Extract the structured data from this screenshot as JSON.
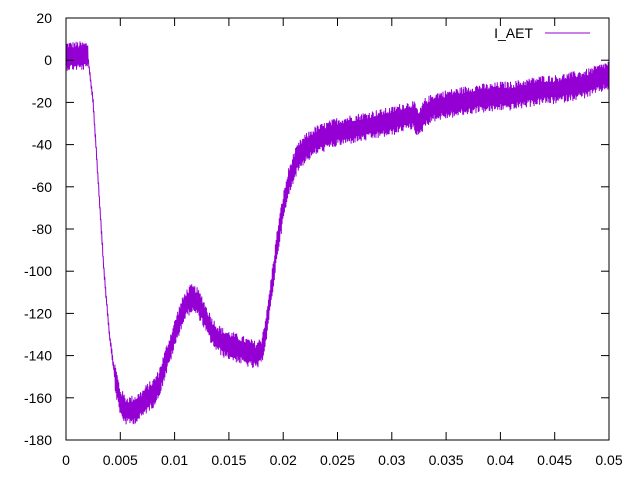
{
  "chart_data": {
    "type": "line",
    "title": "",
    "xlabel": "",
    "ylabel": "",
    "xlim": [
      0,
      0.05
    ],
    "ylim": [
      -180,
      20
    ],
    "xticks": [
      0,
      0.005,
      0.01,
      0.015,
      0.02,
      0.025,
      0.03,
      0.035,
      0.04,
      0.045,
      0.05
    ],
    "xtick_labels": [
      "0",
      "0.005",
      "0.01",
      "0.015",
      "0.02",
      "0.025",
      "0.03",
      "0.035",
      "0.04",
      "0.045",
      "0.05"
    ],
    "yticks": [
      20,
      0,
      -20,
      -40,
      -60,
      -80,
      -100,
      -120,
      -140,
      -160,
      -180
    ],
    "ytick_labels": [
      "20",
      "0",
      "-20",
      "-40",
      "-60",
      "-80",
      "-100",
      "-120",
      "-140",
      "-160",
      "-180"
    ],
    "grid": false,
    "legend": {
      "position": "top-right",
      "entries": [
        "I_AET"
      ]
    },
    "series": [
      {
        "name": "I_AET",
        "color": "#9400d3",
        "x": [
          0,
          0.001,
          0.002,
          0.0025,
          0.003,
          0.0035,
          0.004,
          0.0045,
          0.005,
          0.0055,
          0.006,
          0.0065,
          0.007,
          0.0075,
          0.008,
          0.0085,
          0.009,
          0.0095,
          0.01,
          0.0105,
          0.011,
          0.0115,
          0.012,
          0.0125,
          0.013,
          0.0135,
          0.014,
          0.0145,
          0.015,
          0.0155,
          0.016,
          0.0165,
          0.017,
          0.0175,
          0.018,
          0.0185,
          0.019,
          0.0195,
          0.02,
          0.0205,
          0.021,
          0.0215,
          0.022,
          0.0225,
          0.023,
          0.024,
          0.025,
          0.026,
          0.027,
          0.028,
          0.029,
          0.03,
          0.031,
          0.032,
          0.0325,
          0.033,
          0.034,
          0.035,
          0.036,
          0.037,
          0.038,
          0.039,
          0.04,
          0.041,
          0.042,
          0.043,
          0.044,
          0.045,
          0.046,
          0.047,
          0.048,
          0.049,
          0.05
        ],
        "y": [
          2,
          2,
          2,
          -20,
          -60,
          -100,
          -130,
          -150,
          -162,
          -166,
          -166,
          -165,
          -163,
          -160,
          -158,
          -154,
          -146,
          -138,
          -130,
          -122,
          -116,
          -113,
          -114,
          -118,
          -124,
          -129,
          -132,
          -134,
          -135,
          -136,
          -137,
          -138,
          -139,
          -140,
          -138,
          -125,
          -105,
          -85,
          -70,
          -58,
          -50,
          -45,
          -42,
          -40,
          -38,
          -36,
          -34,
          -33,
          -32,
          -31,
          -30,
          -29,
          -27,
          -26,
          -31,
          -25,
          -22,
          -21,
          -20,
          -19,
          -18,
          -18,
          -17,
          -17,
          -16,
          -15,
          -14,
          -14,
          -13,
          -12,
          -11,
          -9,
          -7
        ],
        "noise_amplitude": 7
      }
    ]
  }
}
